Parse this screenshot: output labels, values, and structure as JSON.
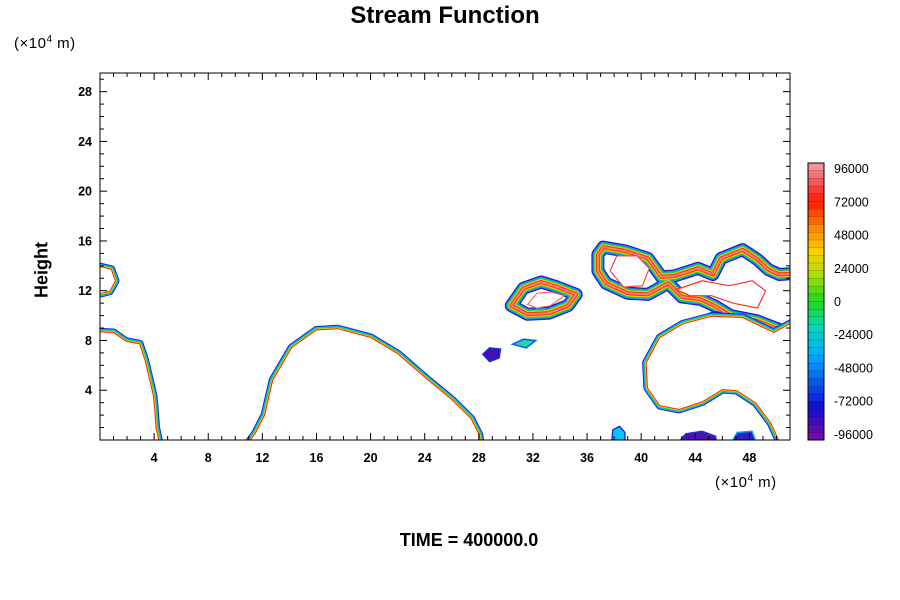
{
  "chart_data": {
    "type": "heatmap",
    "title": "Stream Function",
    "ylabel": "Height",
    "x_unit": {
      "pre": "(×10",
      "exp": "4",
      "post": " m)"
    },
    "y_unit": {
      "pre": "(×10",
      "exp": "4",
      "post": " m)"
    },
    "xlim": [
      0,
      51
    ],
    "ylim": [
      0,
      29.5
    ],
    "xticks": [
      4,
      8,
      12,
      16,
      20,
      24,
      28,
      32,
      36,
      40,
      44,
      48
    ],
    "yticks": [
      4,
      8,
      12,
      16,
      20,
      24,
      28
    ],
    "colorbar": {
      "min": -100000,
      "max": 100000,
      "labels": [
        96000,
        72000,
        48000,
        24000,
        0,
        -24000,
        -48000,
        -72000,
        -96000
      ]
    },
    "footer": "TIME = 400000.0",
    "features": [
      {
        "name": "left-edge-blob",
        "x": [
          0,
          1.1
        ],
        "y": [
          11.7,
          14
        ]
      },
      {
        "name": "left-lower-region",
        "x": [
          0,
          4.5
        ],
        "y": [
          0,
          8.8
        ]
      },
      {
        "name": "central-dome",
        "x": [
          10,
          28
        ],
        "y": [
          0,
          9
        ]
      },
      {
        "name": "small-vortex-a",
        "x": [
          28.3,
          29.7
        ],
        "y": [
          6.3,
          7.5
        ]
      },
      {
        "name": "small-vortex-b",
        "x": [
          30.5,
          32.2
        ],
        "y": [
          7.4,
          8.1
        ]
      },
      {
        "name": "vortex-32",
        "x": [
          30.2,
          35.5
        ],
        "y": [
          9.9,
          12.8
        ]
      },
      {
        "name": "cloud-upper-right",
        "x": [
          36.5,
          51
        ],
        "y": [
          8.5,
          15.8
        ]
      },
      {
        "name": "cloud-lower-right",
        "x": [
          40,
          51
        ],
        "y": [
          0,
          10
        ]
      },
      {
        "name": "bottom-blob-38",
        "x": [
          37.8,
          38.8
        ],
        "y": [
          0,
          1
        ]
      },
      {
        "name": "bottom-blob-43",
        "x": [
          42.5,
          45.5
        ],
        "y": [
          0,
          0.7
        ]
      },
      {
        "name": "bottom-blob-47",
        "x": [
          46.5,
          48.5
        ],
        "y": [
          0,
          0.7
        ]
      }
    ]
  }
}
